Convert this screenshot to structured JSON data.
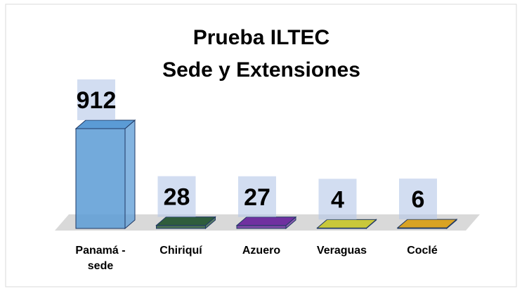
{
  "chart_data": {
    "type": "bar3d",
    "title": [
      "Prueba ILTEC",
      "Sede y Extensiones"
    ],
    "categories": [
      "Panamá - sede",
      "Chiriquí",
      "Azuero",
      "Veraguas",
      "Coclé"
    ],
    "values": [
      912,
      28,
      27,
      4,
      6
    ],
    "colors": [
      "#5b9bd5",
      "#2f5d3c",
      "#7030a0",
      "#c9c83a",
      "#d9a324"
    ]
  }
}
